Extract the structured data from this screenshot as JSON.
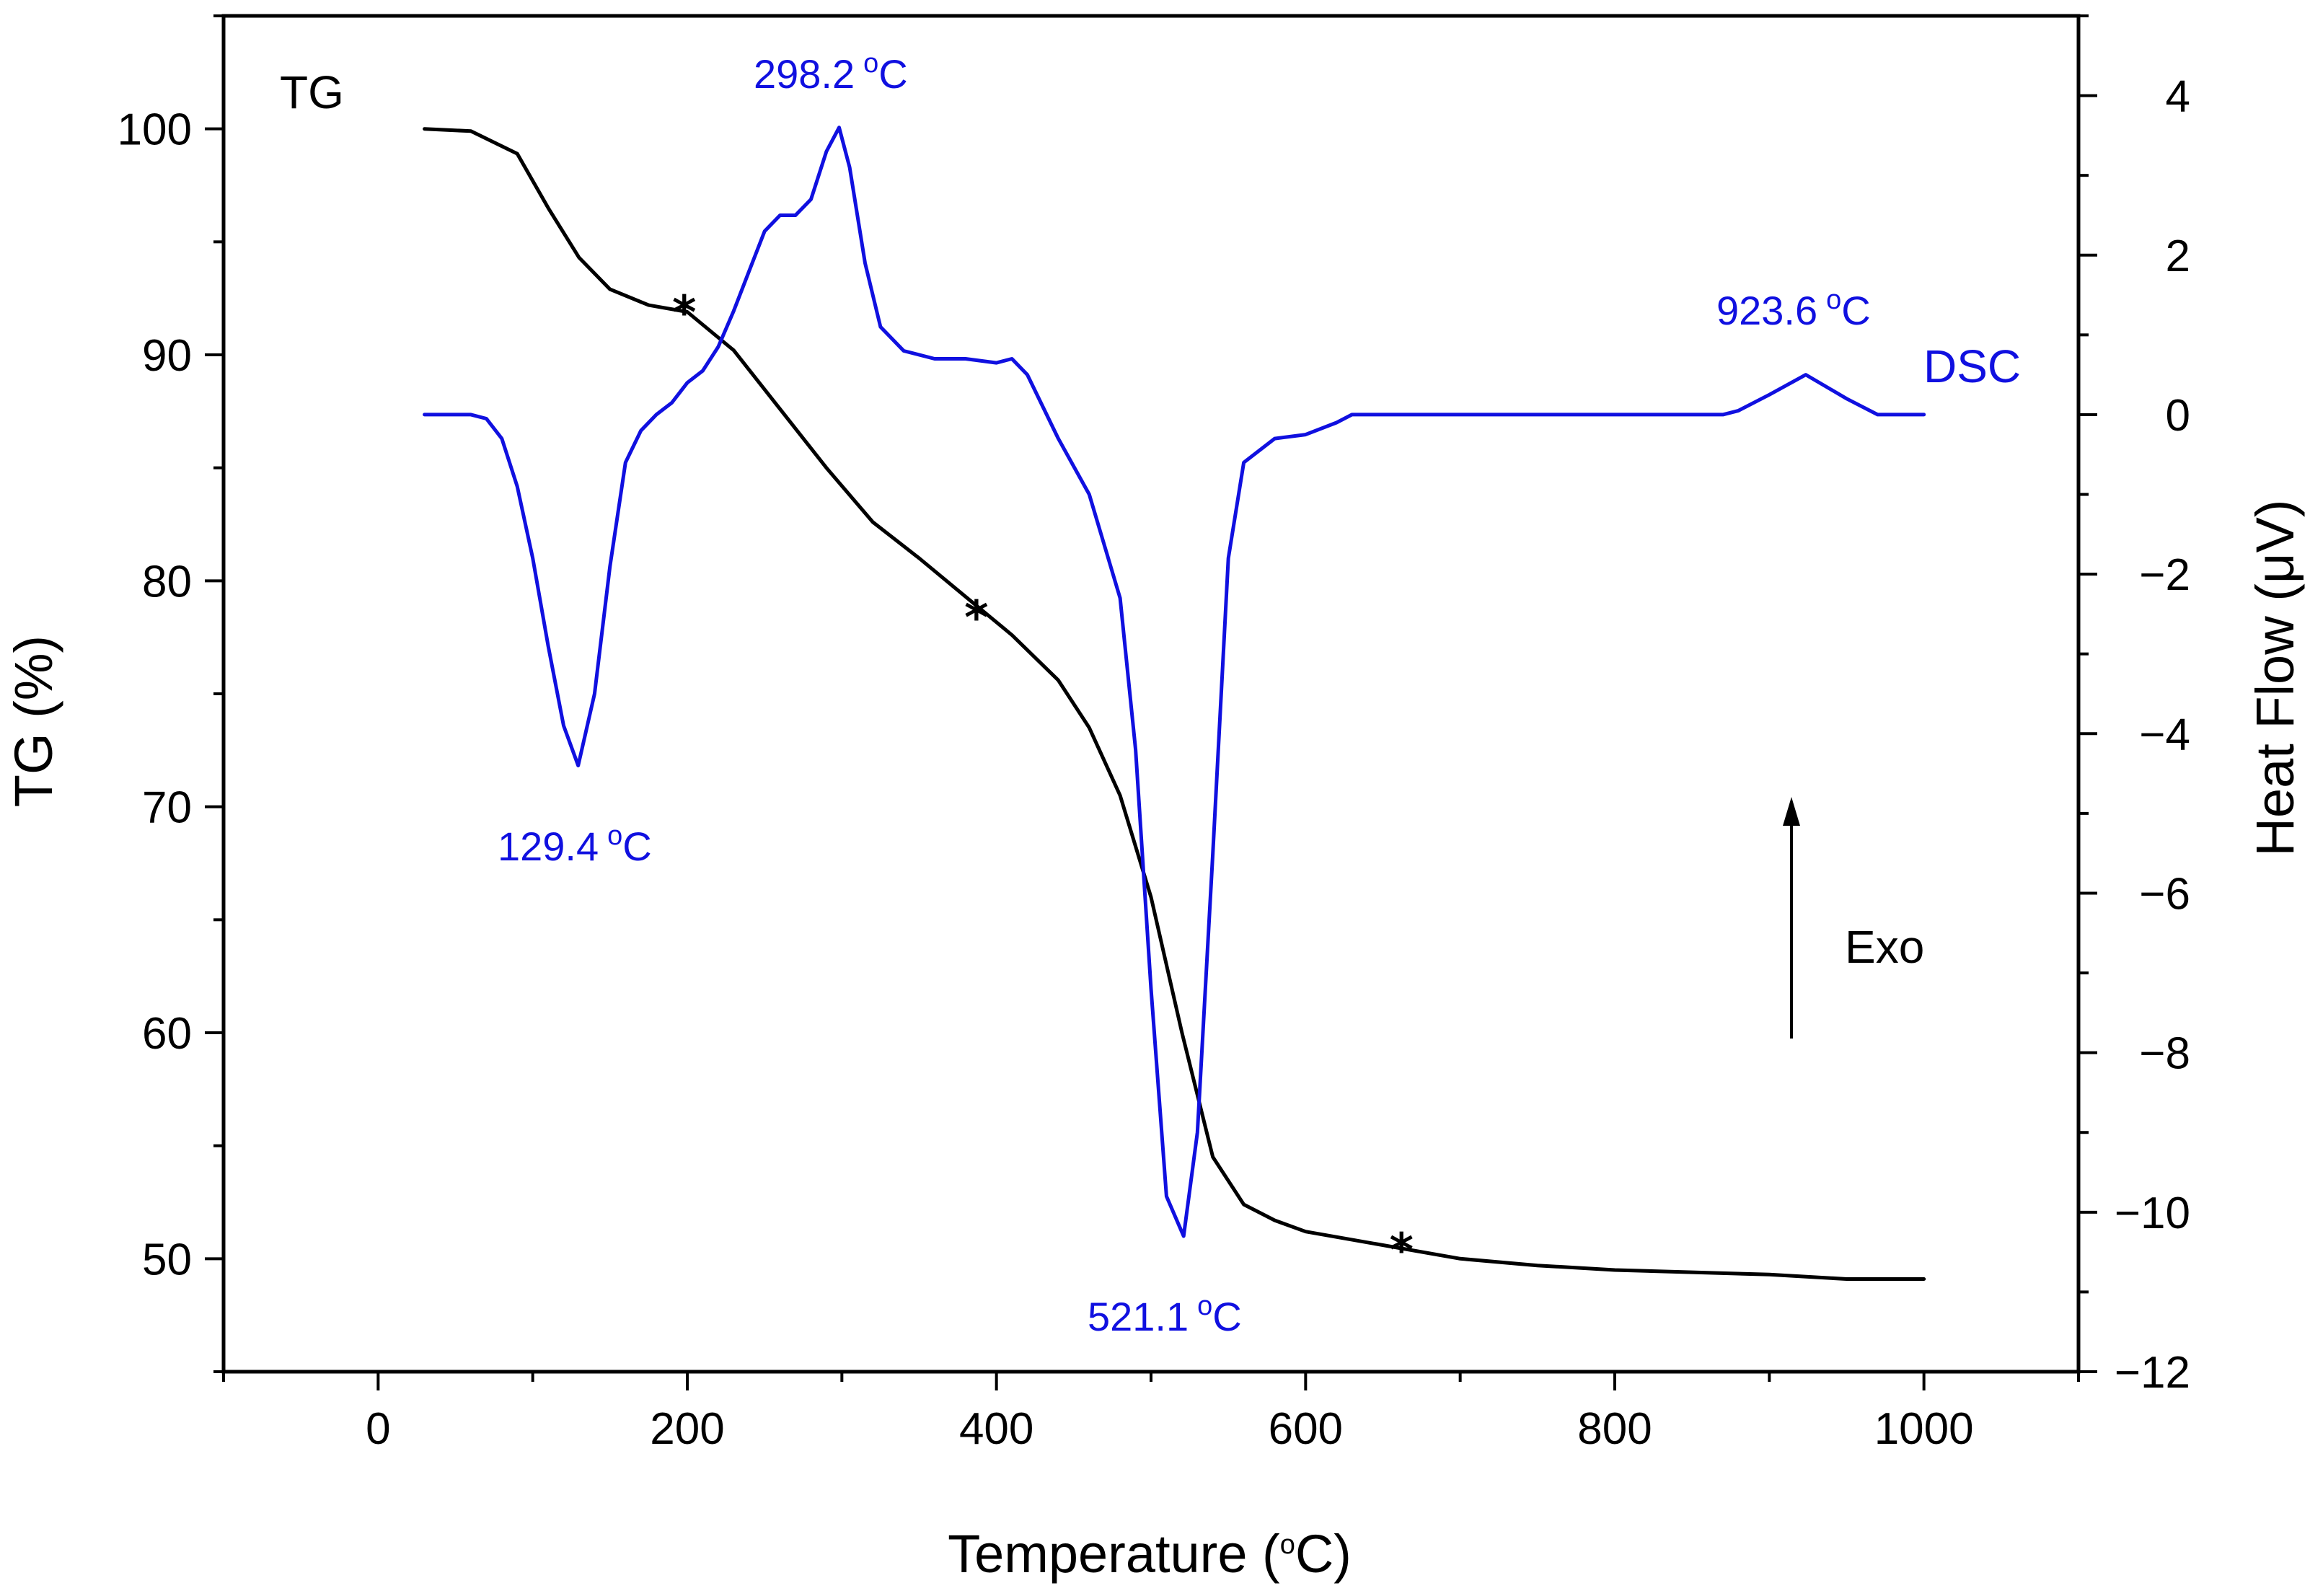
{
  "chart_data": {
    "type": "line",
    "title": "",
    "xlabel": "Temperature (oC)",
    "xlabel_parts": {
      "prefix": "Temperature (",
      "sup": "o",
      "suffix": "C)"
    },
    "xlim": [
      -100,
      1100
    ],
    "xticks": [
      0,
      200,
      400,
      600,
      800,
      1000
    ],
    "xticks_minor": [
      -100,
      100,
      300,
      500,
      700,
      900,
      1100
    ],
    "left_axis": {
      "label": "TG (%)",
      "ylim": [
        45,
        105
      ],
      "ticks": [
        50,
        60,
        70,
        80,
        90,
        100
      ],
      "minor": [
        45,
        55,
        65,
        75,
        85,
        95,
        105
      ]
    },
    "right_axis": {
      "label": "Heat Flow (μV)",
      "ylim": [
        -12,
        5
      ],
      "ticks": [
        4,
        2,
        0,
        -2,
        -4,
        -6,
        -8,
        -10,
        -12
      ],
      "tick_labels": [
        "4",
        "2",
        "0",
        "−2",
        "−4",
        "−6",
        "−8",
        "−10",
        "−12"
      ],
      "minor": [
        5,
        3,
        1,
        -1,
        -3,
        -5,
        -7,
        -9,
        -11
      ]
    },
    "series": [
      {
        "name": "TG",
        "axis": "left",
        "color": "#000000",
        "x": [
          30,
          60,
          90,
          110,
          130,
          150,
          175,
          200,
          230,
          260,
          290,
          320,
          350,
          380,
          410,
          440,
          460,
          480,
          500,
          520,
          540,
          560,
          580,
          600,
          650,
          700,
          750,
          800,
          850,
          900,
          950,
          1000
        ],
        "values": [
          100,
          99.9,
          98.9,
          96.5,
          94.3,
          92.9,
          92.2,
          91.9,
          90.2,
          87.6,
          85.0,
          82.6,
          81.0,
          79.3,
          77.6,
          75.6,
          73.5,
          70.5,
          66.0,
          60.0,
          54.5,
          52.4,
          51.7,
          51.2,
          50.6,
          50.0,
          49.7,
          49.5,
          49.4,
          49.3,
          49.1,
          49.1
        ]
      },
      {
        "name": "DSC",
        "axis": "right",
        "color": "#1010e0",
        "x": [
          30,
          60,
          70,
          80,
          90,
          100,
          110,
          120,
          129.4,
          140,
          150,
          160,
          170,
          180,
          190,
          200,
          210,
          220,
          230,
          240,
          250,
          260,
          270,
          280,
          290,
          298.2,
          305,
          315,
          325,
          340,
          360,
          380,
          400,
          410,
          420,
          440,
          460,
          480,
          490,
          500,
          510,
          521.1,
          530,
          540,
          550,
          560,
          580,
          600,
          620,
          630,
          650,
          700,
          800,
          870,
          880,
          900,
          923.6,
          950,
          970,
          1000
        ],
        "values": [
          0,
          0,
          -0.05,
          -0.3,
          -0.9,
          -1.8,
          -2.9,
          -3.9,
          -4.4,
          -3.5,
          -1.9,
          -0.6,
          -0.2,
          0,
          0.15,
          0.4,
          0.55,
          0.85,
          1.3,
          1.8,
          2.3,
          2.5,
          2.5,
          2.7,
          3.3,
          3.6,
          3.1,
          1.9,
          1.1,
          0.8,
          0.7,
          0.7,
          0.65,
          0.7,
          0.5,
          -0.3,
          -1.0,
          -2.3,
          -4.2,
          -7.2,
          -9.8,
          -10.3,
          -9.0,
          -5.5,
          -1.8,
          -0.6,
          -0.3,
          -0.25,
          -0.1,
          0,
          0,
          0,
          0,
          0,
          0.05,
          0.25,
          0.5,
          0.2,
          0,
          0
        ]
      }
    ],
    "tg_markers": [
      {
        "x": 198,
        "y": 92.0
      },
      {
        "x": 387,
        "y": 78.5
      },
      {
        "x": 662,
        "y": 50.5
      }
    ],
    "annotations": [
      {
        "id": "a1",
        "text": "298.2 °C",
        "value": "298.2",
        "x": 298.2,
        "series": "DSC"
      },
      {
        "id": "a2",
        "text": "129.4 °C",
        "value": "129.4",
        "x": 129.4,
        "series": "DSC"
      },
      {
        "id": "a3",
        "text": "521.1 °C",
        "value": "521.1",
        "x": 521.1,
        "series": "DSC"
      },
      {
        "id": "a4",
        "text": "923.6 °C",
        "value": "923.6",
        "x": 923.6,
        "series": "DSC"
      }
    ],
    "labels": {
      "tg": "TG",
      "dsc": "DSC",
      "exo": "Exo"
    },
    "unit": {
      "sup": "o",
      "letter": "C"
    }
  },
  "colors": {
    "tg": "#000000",
    "dsc": "#1010e0"
  }
}
